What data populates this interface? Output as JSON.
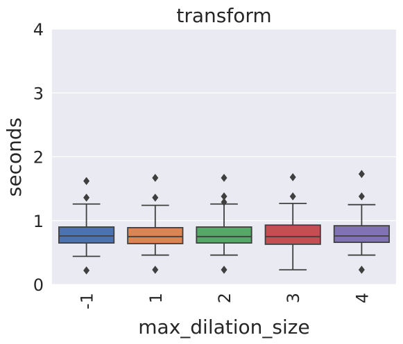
{
  "chart_data": {
    "type": "box",
    "title": "transform",
    "xlabel": "max_dilation_size",
    "ylabel": "seconds",
    "ylim": [
      0,
      4
    ],
    "yticks": [
      "0",
      "1",
      "2",
      "3",
      "4"
    ],
    "grid": true,
    "categories": [
      "-1",
      "1",
      "2",
      "3",
      "4"
    ],
    "boxes": [
      {
        "category": "-1",
        "whisker_low": 0.44,
        "q1": 0.65,
        "median": 0.76,
        "q3": 0.9,
        "whisker_high": 1.26,
        "outliers": [
          0.22,
          1.36,
          1.62
        ],
        "color": "#4c72b0"
      },
      {
        "category": "1",
        "whisker_low": 0.46,
        "q1": 0.64,
        "median": 0.75,
        "q3": 0.89,
        "whisker_high": 1.24,
        "outliers": [
          0.23,
          1.36,
          1.67
        ],
        "color": "#dd8452"
      },
      {
        "category": "2",
        "whisker_low": 0.46,
        "q1": 0.65,
        "median": 0.75,
        "q3": 0.9,
        "whisker_high": 1.26,
        "outliers": [
          0.23,
          1.29,
          1.38,
          1.67
        ],
        "color": "#55a868"
      },
      {
        "category": "3",
        "whisker_low": 0.23,
        "q1": 0.63,
        "median": 0.75,
        "q3": 0.93,
        "whisker_high": 1.27,
        "outliers": [
          1.38,
          1.68
        ],
        "color": "#c44e52"
      },
      {
        "category": "4",
        "whisker_low": 0.46,
        "q1": 0.66,
        "median": 0.76,
        "q3": 0.92,
        "whisker_high": 1.25,
        "outliers": [
          0.23,
          1.38,
          1.73
        ],
        "color": "#8172b3"
      }
    ]
  }
}
